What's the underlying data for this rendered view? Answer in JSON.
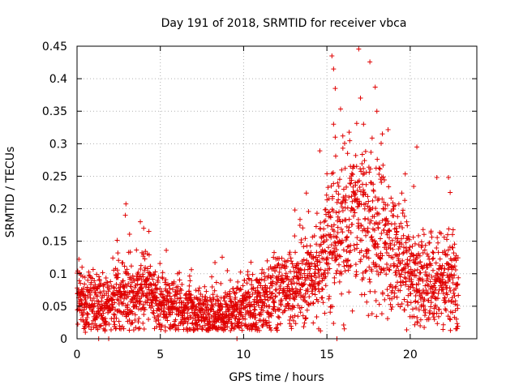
{
  "chart_data": {
    "type": "scatter",
    "title": "Day 191 of 2018, SRMTID for receiver vbca",
    "xlabel": "GPS time / hours",
    "ylabel": "SRMTID / TECUs",
    "xlim": [
      0,
      24
    ],
    "ylim": [
      0,
      0.45
    ],
    "x_ticks": [
      0,
      5,
      10,
      15,
      20
    ],
    "x_tick_labels": [
      "0",
      "5",
      "10",
      "15",
      "20"
    ],
    "y_ticks": [
      0,
      0.05,
      0.1,
      0.15,
      0.2,
      0.25,
      0.3,
      0.35,
      0.4,
      0.45
    ],
    "y_tick_labels": [
      "0",
      "0.05",
      "0.1",
      "0.15",
      "0.2",
      "0.25",
      "0.3",
      "0.35",
      "0.4",
      "0.45"
    ],
    "grid": true,
    "marker": "plus",
    "series": [
      {
        "name": "SRMTID",
        "color": "#e00000",
        "x_range": [
          0.0,
          22.9
        ],
        "trend": [
          [
            0.0,
            0.06
          ],
          [
            1.0,
            0.055
          ],
          [
            2.0,
            0.055
          ],
          [
            2.5,
            0.065
          ],
          [
            3.0,
            0.075
          ],
          [
            3.5,
            0.065
          ],
          [
            4.0,
            0.085
          ],
          [
            4.5,
            0.06
          ],
          [
            5.0,
            0.05
          ],
          [
            6.0,
            0.05
          ],
          [
            7.0,
            0.045
          ],
          [
            8.0,
            0.04
          ],
          [
            9.0,
            0.04
          ],
          [
            10.0,
            0.05
          ],
          [
            11.0,
            0.055
          ],
          [
            12.0,
            0.075
          ],
          [
            13.0,
            0.08
          ],
          [
            14.0,
            0.09
          ],
          [
            14.5,
            0.11
          ],
          [
            15.0,
            0.14
          ],
          [
            16.0,
            0.17
          ],
          [
            17.0,
            0.19
          ],
          [
            18.0,
            0.17
          ],
          [
            19.0,
            0.14
          ],
          [
            20.0,
            0.1
          ],
          [
            21.0,
            0.085
          ],
          [
            22.0,
            0.1
          ],
          [
            22.9,
            0.085
          ]
        ],
        "notable_points": [
          [
            0.3,
            0.11
          ],
          [
            2.9,
            0.19
          ],
          [
            3.8,
            0.18
          ],
          [
            4.0,
            0.17
          ],
          [
            15.3,
            0.435
          ],
          [
            15.4,
            0.415
          ],
          [
            15.5,
            0.385
          ],
          [
            15.4,
            0.33
          ],
          [
            15.5,
            0.31
          ],
          [
            17.9,
            0.387
          ],
          [
            17.2,
            0.33
          ],
          [
            18.0,
            0.35
          ],
          [
            20.4,
            0.295
          ],
          [
            21.6,
            0.248
          ],
          [
            22.3,
            0.248
          ],
          [
            22.4,
            0.225
          ],
          [
            0.5,
            0.01
          ],
          [
            1.3,
            0.0
          ],
          [
            1.9,
            0.0
          ],
          [
            9.6,
            0.0
          ],
          [
            15.6,
            0.0
          ],
          [
            20.6,
            0.02
          ],
          [
            8.9,
            0.02
          ]
        ]
      }
    ]
  }
}
